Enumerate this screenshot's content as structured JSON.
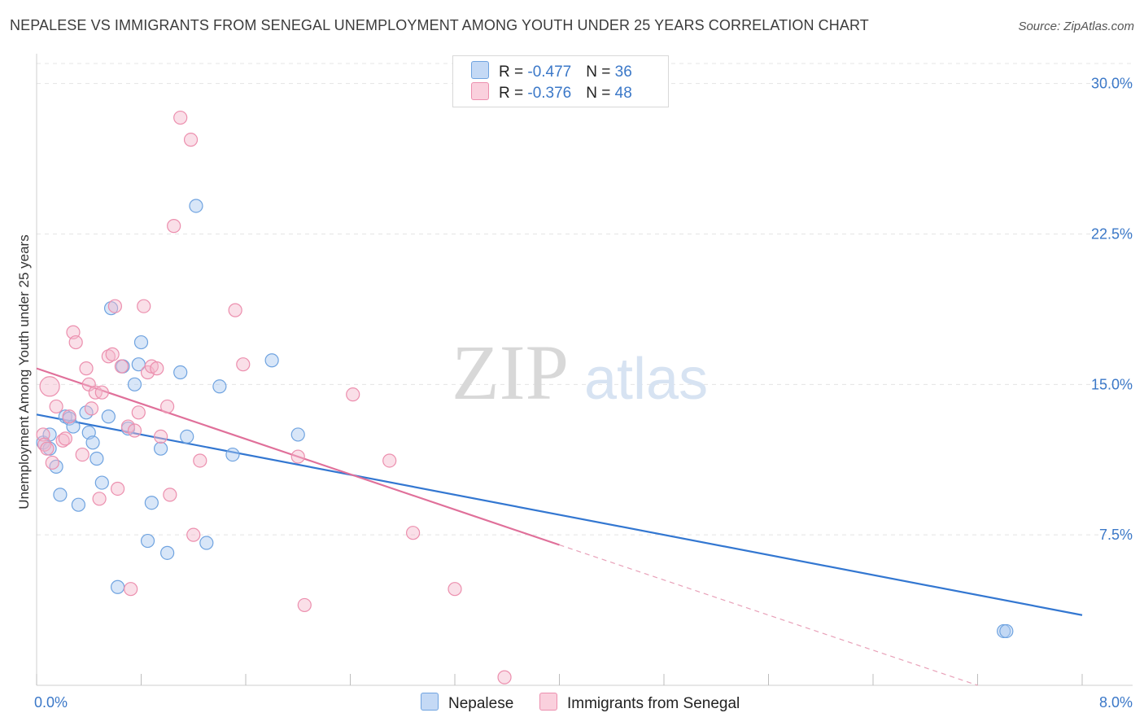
{
  "header": {
    "title": "NEPALESE VS IMMIGRANTS FROM SENEGAL UNEMPLOYMENT AMONG YOUTH UNDER 25 YEARS CORRELATION CHART",
    "source": "Source: ZipAtlas.com"
  },
  "watermark": {
    "zip": "ZIP",
    "atlas": "atlas"
  },
  "legend": {
    "r_prefix": "R = ",
    "n_prefix": "N = ",
    "rows": [
      {
        "r": "-0.477",
        "n": "36",
        "color": "#a8c8f0"
      },
      {
        "r": "-0.376",
        "n": "48",
        "color": "#f5b8cc"
      }
    ]
  },
  "chart_data": {
    "type": "scatter",
    "ylabel": "Unemployment Among Youth under 25 years",
    "xlim": [
      0,
      8
    ],
    "ylim": [
      0,
      31
    ],
    "x_tick_labels": [
      "0.0%",
      "8.0%"
    ],
    "y_tick_labels": [
      "7.5%",
      "15.0%",
      "22.5%",
      "30.0%"
    ],
    "y_ticks": [
      7.5,
      15.0,
      22.5,
      30.0
    ],
    "series": [
      {
        "name": "Nepalese",
        "color": "#6fa3e0",
        "fill": "#a8c8f0",
        "points": [
          [
            0.05,
            12.1
          ],
          [
            0.1,
            12.5
          ],
          [
            0.1,
            11.8
          ],
          [
            0.15,
            10.9
          ],
          [
            0.18,
            9.5
          ],
          [
            0.22,
            13.4
          ],
          [
            0.25,
            13.3
          ],
          [
            0.28,
            12.9
          ],
          [
            0.32,
            9.0
          ],
          [
            0.38,
            13.6
          ],
          [
            0.4,
            12.6
          ],
          [
            0.43,
            12.1
          ],
          [
            0.46,
            11.3
          ],
          [
            0.5,
            10.1
          ],
          [
            0.55,
            13.4
          ],
          [
            0.57,
            18.8
          ],
          [
            0.62,
            4.9
          ],
          [
            0.66,
            15.9
          ],
          [
            0.7,
            12.8
          ],
          [
            0.75,
            15.0
          ],
          [
            0.78,
            16.0
          ],
          [
            0.8,
            17.1
          ],
          [
            0.85,
            7.2
          ],
          [
            0.88,
            9.1
          ],
          [
            0.95,
            11.8
          ],
          [
            1.0,
            6.6
          ],
          [
            1.1,
            15.6
          ],
          [
            1.15,
            12.4
          ],
          [
            1.22,
            23.9
          ],
          [
            1.3,
            7.1
          ],
          [
            1.4,
            14.9
          ],
          [
            1.5,
            11.5
          ],
          [
            1.8,
            16.2
          ],
          [
            2.0,
            12.5
          ],
          [
            7.4,
            2.7
          ],
          [
            7.42,
            2.7
          ]
        ],
        "trend": {
          "x": [
            0,
            8
          ],
          "y": [
            13.5,
            3.5
          ]
        }
      },
      {
        "name": "Immigrants from Senegal",
        "color": "#ec8fae",
        "fill": "#f5b8cc",
        "points": [
          [
            0.05,
            12.5
          ],
          [
            0.06,
            12.0
          ],
          [
            0.08,
            11.8
          ],
          [
            0.1,
            14.9
          ],
          [
            0.12,
            11.1
          ],
          [
            0.15,
            13.9
          ],
          [
            0.2,
            12.2
          ],
          [
            0.22,
            12.3
          ],
          [
            0.25,
            13.4
          ],
          [
            0.28,
            17.6
          ],
          [
            0.3,
            17.1
          ],
          [
            0.35,
            11.5
          ],
          [
            0.38,
            15.8
          ],
          [
            0.4,
            15.0
          ],
          [
            0.42,
            13.8
          ],
          [
            0.45,
            14.6
          ],
          [
            0.48,
            9.3
          ],
          [
            0.5,
            14.6
          ],
          [
            0.55,
            16.4
          ],
          [
            0.58,
            16.5
          ],
          [
            0.6,
            18.9
          ],
          [
            0.62,
            9.8
          ],
          [
            0.65,
            15.9
          ],
          [
            0.7,
            12.9
          ],
          [
            0.72,
            4.8
          ],
          [
            0.75,
            12.7
          ],
          [
            0.78,
            13.6
          ],
          [
            0.82,
            18.9
          ],
          [
            0.85,
            15.6
          ],
          [
            0.88,
            15.9
          ],
          [
            0.92,
            15.8
          ],
          [
            0.95,
            12.4
          ],
          [
            1.0,
            13.9
          ],
          [
            1.02,
            9.5
          ],
          [
            1.05,
            22.9
          ],
          [
            1.1,
            28.3
          ],
          [
            1.18,
            27.2
          ],
          [
            1.2,
            7.5
          ],
          [
            1.25,
            11.2
          ],
          [
            1.52,
            18.7
          ],
          [
            1.58,
            16.0
          ],
          [
            2.0,
            11.4
          ],
          [
            2.05,
            4.0
          ],
          [
            2.42,
            14.5
          ],
          [
            2.7,
            11.2
          ],
          [
            2.88,
            7.6
          ],
          [
            3.2,
            4.8
          ],
          [
            3.58,
            0.4
          ]
        ],
        "trend": {
          "x": [
            0,
            4.0
          ],
          "y": [
            15.8,
            7.0
          ]
        },
        "trend_dashed": {
          "x": [
            4.0,
            7.2
          ],
          "y": [
            7.0,
            0.0
          ]
        }
      }
    ],
    "legend_position": "top-center",
    "grid": true
  }
}
